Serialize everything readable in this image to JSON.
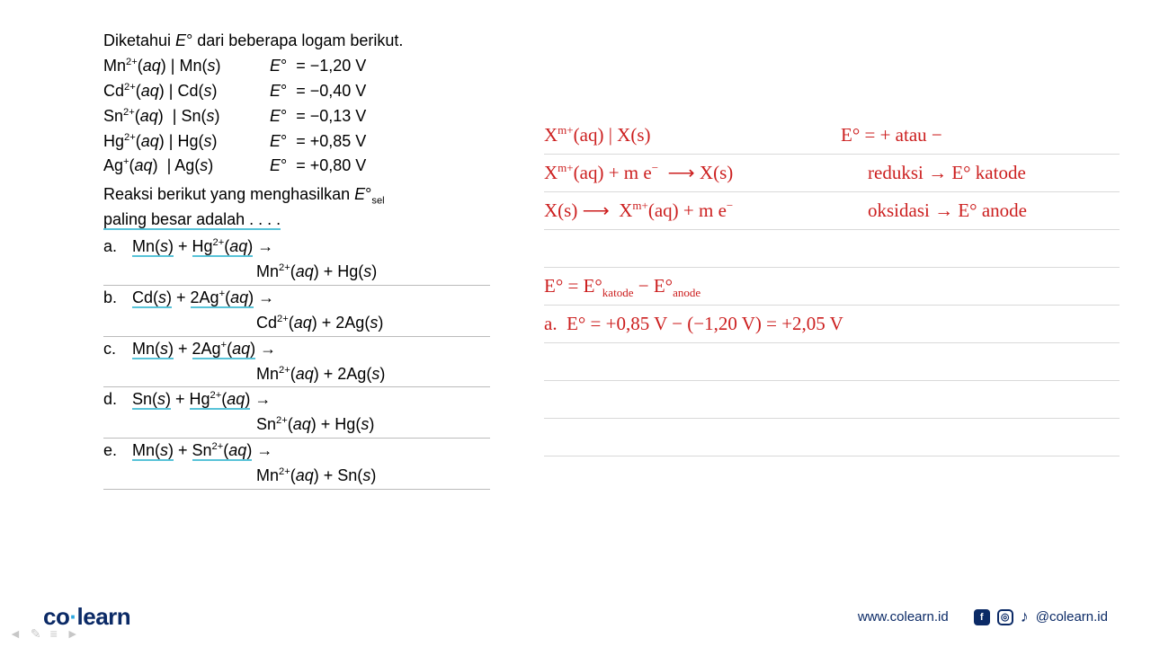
{
  "left": {
    "intro": "Diketahui <i>E</i>° dari beberapa logam berikut.",
    "rows": [
      {
        "pair": "Mn<sup>2+</sup>(<i>aq</i>) | Mn(<i>s</i>)",
        "pot": "<i>E</i>°&nbsp; = −1,20 V"
      },
      {
        "pair": "Cd<sup>2+</sup>(<i>aq</i>) | Cd(<i>s</i>)",
        "pot": "<i>E</i>°&nbsp; = −0,40 V"
      },
      {
        "pair": "Sn<sup>2+</sup>(<i>aq</i>) &nbsp;| Sn(<i>s</i>)",
        "pot": "<i>E</i>°&nbsp; = −0,13 V"
      },
      {
        "pair": "Hg<sup>2+</sup>(<i>aq</i>) | Hg(<i>s</i>)",
        "pot": "<i>E</i>°&nbsp; = +0,85 V"
      },
      {
        "pair": "Ag<sup>+</sup>(<i>aq</i>) &nbsp;| Ag(<i>s</i>)",
        "pot": "<i>E</i>°&nbsp; = +0,80 V"
      }
    ],
    "question1": "Reaksi berikut yang menghasilkan <i>E</i>°<sub>sel</sub>",
    "question2": "paling besar adalah . . . .",
    "options": [
      {
        "letter": "a.",
        "u1": "Mn(<i>s</i>)",
        "mid": " + ",
        "u2": "Hg<sup>2+</sup>(<i>aq</i>)",
        "tail": " →",
        "line2": "Mn<sup>2+</sup>(<i>aq</i>) + Hg(<i>s</i>)"
      },
      {
        "letter": "b.",
        "u1": "Cd(<i>s</i>)",
        "mid": " + ",
        "u2": "2Ag<sup>+</sup>(<i>aq</i>)",
        "tail": " →",
        "line2": "Cd<sup>2+</sup>(<i>aq</i>) + 2Ag(<i>s</i>)"
      },
      {
        "letter": "c.",
        "u1": "Mn(<i>s</i>)",
        "mid": " + ",
        "u2": "2Ag<sup>+</sup>(<i>aq</i>)",
        "tail": " →",
        "line2": "Mn<sup>2+</sup>(<i>aq</i>) + 2Ag(<i>s</i>)"
      },
      {
        "letter": "d.",
        "u1": "Sn(<i>s</i>)",
        "mid": " + ",
        "u2": "Hg<sup>2+</sup>(<i>aq</i>)",
        "tail": " →",
        "line2": "Sn<sup>2+</sup>(<i>aq</i>) + Hg(<i>s</i>)"
      },
      {
        "letter": "e.",
        "u1": "Mn(<i>s</i>)",
        "mid": " + ",
        "u2": "Sn<sup>2+</sup>(<i>aq</i>)",
        "tail": " →",
        "line2": "Mn<sup>2+</sup>(<i>aq</i>) + Sn(<i>s</i>)"
      }
    ]
  },
  "right": {
    "l1a": "X<sup>m+</sup>(aq) <span style=\"color:#cc1f1f;\">|</span> X(s)",
    "l1b": "E° = + atau −",
    "l2a": "X<sup>m+</sup>(aq) + m e<sup>−</sup> &nbsp;<span class=\"arrow\">⟶</span> X(s)",
    "l2b": "reduksi <span class=\"arrow\">→</span> E° katode",
    "l3a": "X(s) <span class=\"arrow\">⟶</span>&nbsp; X<sup>m+</sup>(aq) + m e<sup>−</sup>",
    "l3b": "oksidasi <span class=\"arrow\">→</span> E° anode",
    "l5": "E° = E°<sub>katode</sub> − E°<sub>anode</sub>",
    "l6": "a. &nbsp;E° = +0,85 V − (−1,20 V) = +2,05 V"
  },
  "footer": {
    "logo_co": "co",
    "logo_dot": "·",
    "logo_learn": "learn",
    "url": "www.colearn.id",
    "handle": "@colearn.id"
  }
}
